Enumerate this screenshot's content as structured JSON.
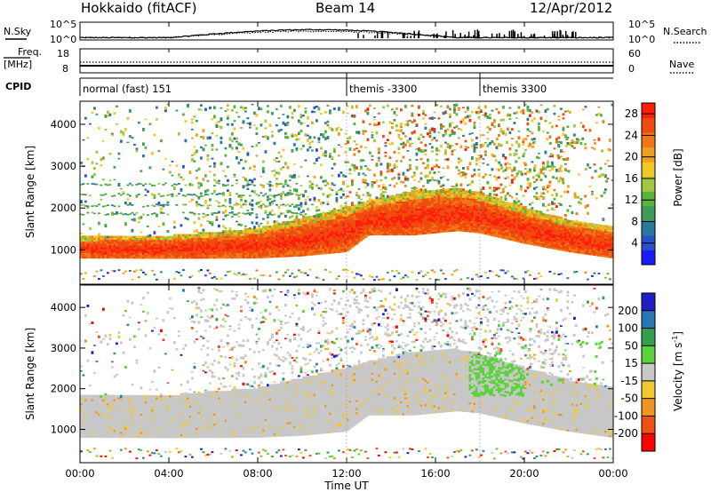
{
  "header": {
    "station": "Hokkaido (fitACF)",
    "beam": "Beam 14",
    "date": "12/Apr/2012"
  },
  "summary_panels": {
    "nsky_label": "N.Sky",
    "nsearch_label": "N.Search",
    "freq_label_line1": "Freq.",
    "freq_label_line2": "[MHz]",
    "nave_label": "Nave",
    "cpid_label": "CPID",
    "nsky_ticks": [
      "10^5",
      "10^0"
    ],
    "nsearch_ticks": [
      "10^5",
      "10^0"
    ],
    "freq_ticks": [
      "18",
      "8"
    ],
    "nave_ticks": [
      "60",
      "0"
    ],
    "cpid_segments": [
      {
        "start_hour": 0,
        "label": "normal (fast) 151"
      },
      {
        "start_hour": 12,
        "label": "themis -3300"
      },
      {
        "start_hour": 18,
        "label": "themis 3300"
      }
    ]
  },
  "chart_data": [
    {
      "type": "heatmap",
      "title": "Power",
      "ylabel": "Slant Range [km]",
      "xlabel": "Time UT",
      "x_ticks": [
        "00:00",
        "04:00",
        "08:00",
        "12:00",
        "16:00",
        "20:00",
        "00:00"
      ],
      "xlim_hours": [
        0,
        24
      ],
      "y_ticks": [
        1000,
        2000,
        3000,
        4000
      ],
      "ylim": [
        180,
        4550
      ],
      "colorbar": {
        "label": "Power [dB]",
        "ticks": [
          4,
          8,
          12,
          16,
          20,
          24,
          28
        ],
        "range": [
          0,
          30
        ],
        "colors": [
          "#1a1aff",
          "#2850c8",
          "#2878a0",
          "#3c9c5a",
          "#5ab43c",
          "#a0c83c",
          "#f0c828",
          "#f0a01e",
          "#f07814",
          "#f04b0f",
          "#ff1e0a"
        ]
      },
      "features": [
        {
          "name": "main band lower edge",
          "x_hours": [
            0,
            4,
            8,
            10,
            12,
            13,
            15,
            17,
            18,
            20,
            22,
            24
          ],
          "y_km": [
            800,
            790,
            800,
            850,
            950,
            1350,
            1350,
            1450,
            1400,
            1150,
            950,
            800
          ]
        },
        {
          "name": "main band upper edge",
          "x_hours": [
            0,
            4,
            8,
            10,
            12,
            13,
            15,
            17,
            18,
            20,
            22,
            24
          ],
          "y_km": [
            1300,
            1320,
            1500,
            1750,
            2000,
            2150,
            2400,
            2450,
            2350,
            2000,
            1700,
            1550
          ]
        }
      ]
    },
    {
      "type": "heatmap",
      "title": "Velocity",
      "ylabel": "Slant Range [km]",
      "xlabel": "Time UT",
      "x_ticks": [
        "00:00",
        "04:00",
        "08:00",
        "12:00",
        "16:00",
        "20:00",
        "00:00"
      ],
      "xlim_hours": [
        0,
        24
      ],
      "y_ticks": [
        1000,
        2000,
        3000,
        4000
      ],
      "ylim": [
        180,
        4550
      ],
      "colorbar": {
        "label": "Velocity [m s^-1]",
        "ticks": [
          "200",
          "100",
          "50",
          "15",
          "-15",
          "-50",
          "-100",
          "-200"
        ],
        "colors": [
          "#1e1ec8",
          "#2878b4",
          "#32a050",
          "#5ad23c",
          "#c8c8c8",
          "#f0c832",
          "#f0961e",
          "#f05014",
          "#ff0000"
        ]
      }
    }
  ]
}
